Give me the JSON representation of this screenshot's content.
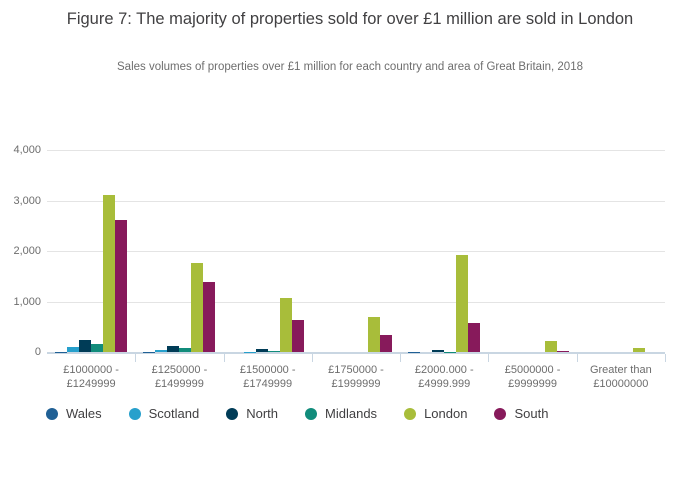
{
  "header": {
    "title": "Figure 7: The majority of properties sold for over £1 million are sold in London",
    "subtitle": "Sales volumes of properties over £1 million for each country and area of Great Britain, 2018"
  },
  "chart_data": {
    "type": "bar",
    "title": "Figure 7: The majority of properties sold for over £1 million are sold in London",
    "subtitle": "Sales volumes of properties over £1 million for each country and area of Great Britain, 2018",
    "categories": [
      "£1000000 - £1249999",
      "£1250000 - £1499999",
      "£1500000 - £1749999",
      "£1750000 - £1999999",
      "£2000.000 - £4999.999",
      "£5000000 - £9999999",
      "Greater than £10000000"
    ],
    "category_lines": [
      [
        "£1000000 -",
        "£1249999"
      ],
      [
        "£1250000 -",
        "£1499999"
      ],
      [
        "£1500000 -",
        "£1749999"
      ],
      [
        "£1750000 -",
        "£1999999"
      ],
      [
        "£2000.000 -",
        "£4999.999"
      ],
      [
        "£5000000 -",
        "£9999999"
      ],
      [
        "Greater than",
        "£10000000"
      ]
    ],
    "series": [
      {
        "name": "Wales",
        "color": "#206095",
        "values": [
          10,
          5,
          0,
          0,
          5,
          0,
          0
        ]
      },
      {
        "name": "Scotland",
        "color": "#27A0CC",
        "values": [
          100,
          40,
          10,
          0,
          0,
          0,
          0
        ]
      },
      {
        "name": "North",
        "color": "#003C57",
        "values": [
          240,
          110,
          60,
          0,
          40,
          0,
          0
        ]
      },
      {
        "name": "Midlands",
        "color": "#118C7B",
        "values": [
          160,
          80,
          30,
          0,
          10,
          0,
          0
        ]
      },
      {
        "name": "London",
        "color": "#A8BD3A",
        "values": [
          3110,
          1770,
          1075,
          700,
          1920,
          220,
          70
        ]
      },
      {
        "name": "South",
        "color": "#871A5B",
        "values": [
          2610,
          1390,
          640,
          345,
          565,
          15,
          0
        ]
      }
    ],
    "xlabel": "",
    "ylabel": "",
    "ylim": [
      0,
      4000
    ],
    "yticks": [
      {
        "value": 0,
        "label": "0"
      },
      {
        "value": 1000,
        "label": "1,000"
      },
      {
        "value": 2000,
        "label": "2,000"
      },
      {
        "value": 3000,
        "label": "3,000"
      },
      {
        "value": 4000,
        "label": "4,000"
      }
    ],
    "grid": "horizontal",
    "legend_position": "bottom"
  },
  "colors": {
    "background": "#ffffff",
    "title_text": "#414042",
    "subtitle_text": "#6e6e6e",
    "tick_text": "#6d6d6d",
    "legend_text": "#414042",
    "gridline": "#e4e4e4",
    "axis_line": "#c9d6e2"
  }
}
